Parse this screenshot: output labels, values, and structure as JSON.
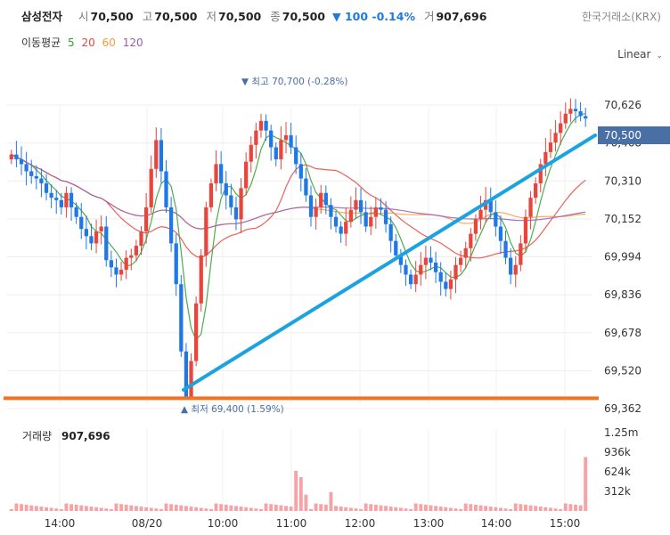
{
  "header": {
    "name": "삼성전자",
    "open_label": "시",
    "open": "70,500",
    "high_label": "고",
    "high": "70,500",
    "low_label": "저",
    "low": "70,500",
    "close_label": "종",
    "close": "70,500",
    "change": "▼ 100 -0.14%",
    "volume_label": "거",
    "volume": "907,696",
    "exchange": "한국거래소(KRX)"
  },
  "ma_legend": {
    "title": "이동평균",
    "periods": [
      {
        "label": "5",
        "color": "#2ca02c"
      },
      {
        "label": "20",
        "color": "#e8453c"
      },
      {
        "label": "60",
        "color": "#f39c3b"
      },
      {
        "label": "120",
        "color": "#9b59b6"
      }
    ]
  },
  "scale_button": "Linear",
  "colors": {
    "up": "#e8453c",
    "down": "#1e78e6",
    "trendline": "#1aa3e0",
    "support": "#f37320",
    "price_tag": "#4a6fa5",
    "volume_bar": "#f4a3a6"
  },
  "chart_data": [
    {
      "type": "candlestick",
      "title": "",
      "yaxis_ticks": [
        "70,626",
        "70,468",
        "70,310",
        "70,152",
        "69,994",
        "69,836",
        "69,678",
        "69,520",
        "69,362"
      ],
      "y_tick_values": [
        70626,
        70468,
        70310,
        70152,
        69994,
        69836,
        69678,
        69520,
        69362
      ],
      "ylim": [
        69362,
        70700
      ],
      "xaxis_ticks": [
        "14:00",
        "08/20",
        "10:00",
        "11:00",
        "12:00",
        "13:00",
        "14:00",
        "15:00"
      ],
      "current_price_tag": "70,500",
      "current_price": 70500,
      "high_annotation": "▼ 최고 70,700 (-0.28%)",
      "low_annotation": "▲ 최저 69,400 (1.59%)",
      "high_value": 70700,
      "low_value": 69400,
      "close_series": [
        70420,
        70400,
        70380,
        70350,
        70330,
        70320,
        70300,
        70260,
        70240,
        70230,
        70200,
        70260,
        70200,
        70160,
        70110,
        70080,
        70050,
        70100,
        70120,
        69980,
        69950,
        69920,
        69940,
        69990,
        70000,
        70040,
        70100,
        70200,
        70360,
        70480,
        70350,
        70200,
        70050,
        69880,
        69600,
        69400,
        69560,
        69800,
        70000,
        70200,
        70300,
        70380,
        70300,
        70250,
        70200,
        70150,
        70280,
        70390,
        70460,
        70520,
        70560,
        70520,
        70450,
        70400,
        70480,
        70500,
        70450,
        70380,
        70320,
        70250,
        70160,
        70200,
        70260,
        70210,
        70160,
        70120,
        70090,
        70140,
        70190,
        70230,
        70180,
        70120,
        70160,
        70200,
        70190,
        70130,
        70060,
        70000,
        69960,
        69920,
        69880,
        69920,
        69960,
        69990,
        69970,
        69930,
        69890,
        69860,
        69900,
        69960,
        69990,
        70030,
        70090,
        70150,
        70190,
        70230,
        70180,
        70120,
        70060,
        69990,
        69920,
        69960,
        70050,
        70160,
        70240,
        70300,
        70380,
        70430,
        70470,
        70510,
        70550,
        70590,
        70610,
        70600,
        70580,
        70570
      ],
      "support_level": 69405,
      "trendline": {
        "from": {
          "x": "08/20 09:20",
          "y": 69440
        },
        "to": {
          "x": "15:20",
          "y": 70500
        }
      }
    },
    {
      "type": "bar",
      "title": "거래량",
      "title_value": "907,696",
      "yaxis_ticks": [
        "1.25m",
        "936k",
        "624k",
        "312k"
      ],
      "spike_values": [
        120000,
        640000,
        540000,
        860000
      ],
      "ylim": [
        0,
        1250000
      ]
    }
  ]
}
